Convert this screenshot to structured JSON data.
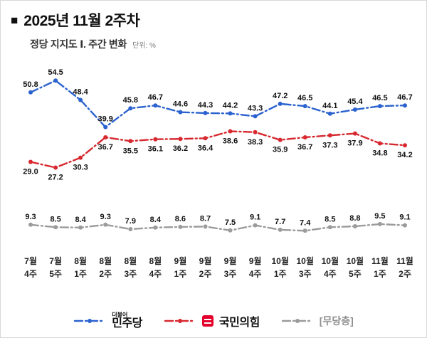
{
  "header": {
    "title_bullet": "■",
    "title": "2025년 11월 2주차",
    "subtitle": "정당 지지도 Ⅰ. 주간 변화",
    "unit_label": "단위: %"
  },
  "chart_data": {
    "type": "line",
    "title": "정당 지지도 주간 변화",
    "unit": "%",
    "categories_month": [
      "7월",
      "7월",
      "8월",
      "8월",
      "8월",
      "8월",
      "9월",
      "9월",
      "9월",
      "9월",
      "10월",
      "10월",
      "10월",
      "10월",
      "11월",
      "11월"
    ],
    "categories_week": [
      "4주",
      "5주",
      "1주",
      "2주",
      "3주",
      "4주",
      "1주",
      "2주",
      "3주",
      "4주",
      "1주",
      "3주",
      "4주",
      "5주",
      "1주",
      "2주"
    ],
    "series": [
      {
        "name": "민주당",
        "color": "#2a62cf",
        "line_style": "dash-dot",
        "label_position": "above",
        "values": [
          50.8,
          54.5,
          48.4,
          39.9,
          45.8,
          46.7,
          44.6,
          44.3,
          44.2,
          43.3,
          47.2,
          46.5,
          44.1,
          45.4,
          46.5,
          46.7
        ]
      },
      {
        "name": "국민의힘",
        "color": "#d7282f",
        "line_style": "dash-dot",
        "label_position": "below",
        "values": [
          29.0,
          27.2,
          30.3,
          36.7,
          35.5,
          36.1,
          36.2,
          36.4,
          38.6,
          38.3,
          35.9,
          36.7,
          37.3,
          37.9,
          34.8,
          34.2
        ]
      },
      {
        "name": "[무당층]",
        "color": "#9b9b9b",
        "line_style": "dash-dot",
        "label_position": "above",
        "values": [
          9.3,
          8.5,
          8.4,
          9.3,
          7.9,
          8.4,
          8.6,
          8.7,
          7.5,
          9.1,
          7.7,
          7.4,
          8.5,
          8.8,
          9.5,
          9.1
        ]
      }
    ],
    "ylim": [
      4,
      57
    ],
    "grid": false,
    "legend_position": "bottom"
  },
  "legend": {
    "minjoo_logo_top": "더불어",
    "minjoo_label": "민주당",
    "ppp_label": "국민의힘",
    "independent_label": "[무당층]"
  }
}
